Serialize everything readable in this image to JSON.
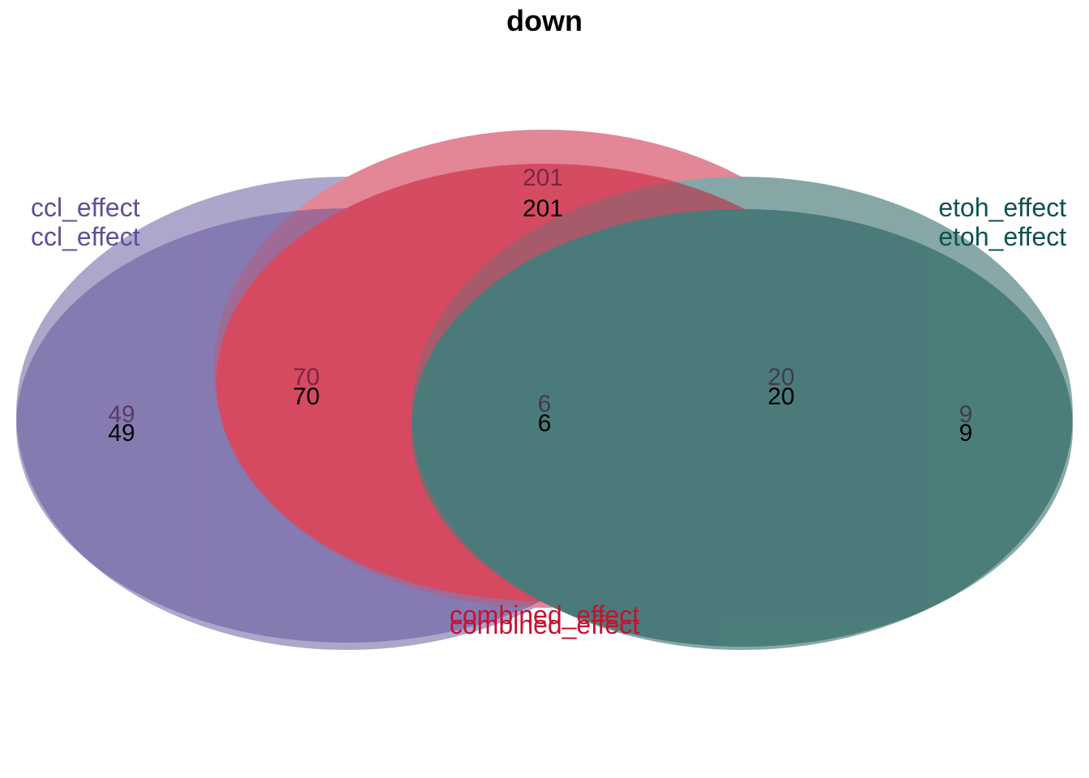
{
  "title": "down",
  "sets": [
    {
      "name": "ccl_effect",
      "color": "#5e4f98"
    },
    {
      "name": "combined_effect",
      "color": "#c8102e"
    },
    {
      "name": "etoh_effect",
      "color": "#0f5150"
    }
  ],
  "layers": [
    {
      "counts": {
        "ccl_only": "49",
        "combined_only": "201",
        "etoh_only": "9",
        "ccl_combined": "70",
        "combined_etoh": "20",
        "all_three": "6"
      }
    },
    {
      "counts": {
        "ccl_only": "49",
        "combined_only": "201",
        "etoh_only": "9",
        "ccl_combined": "70",
        "combined_etoh": "20",
        "all_three": "6"
      }
    }
  ]
}
